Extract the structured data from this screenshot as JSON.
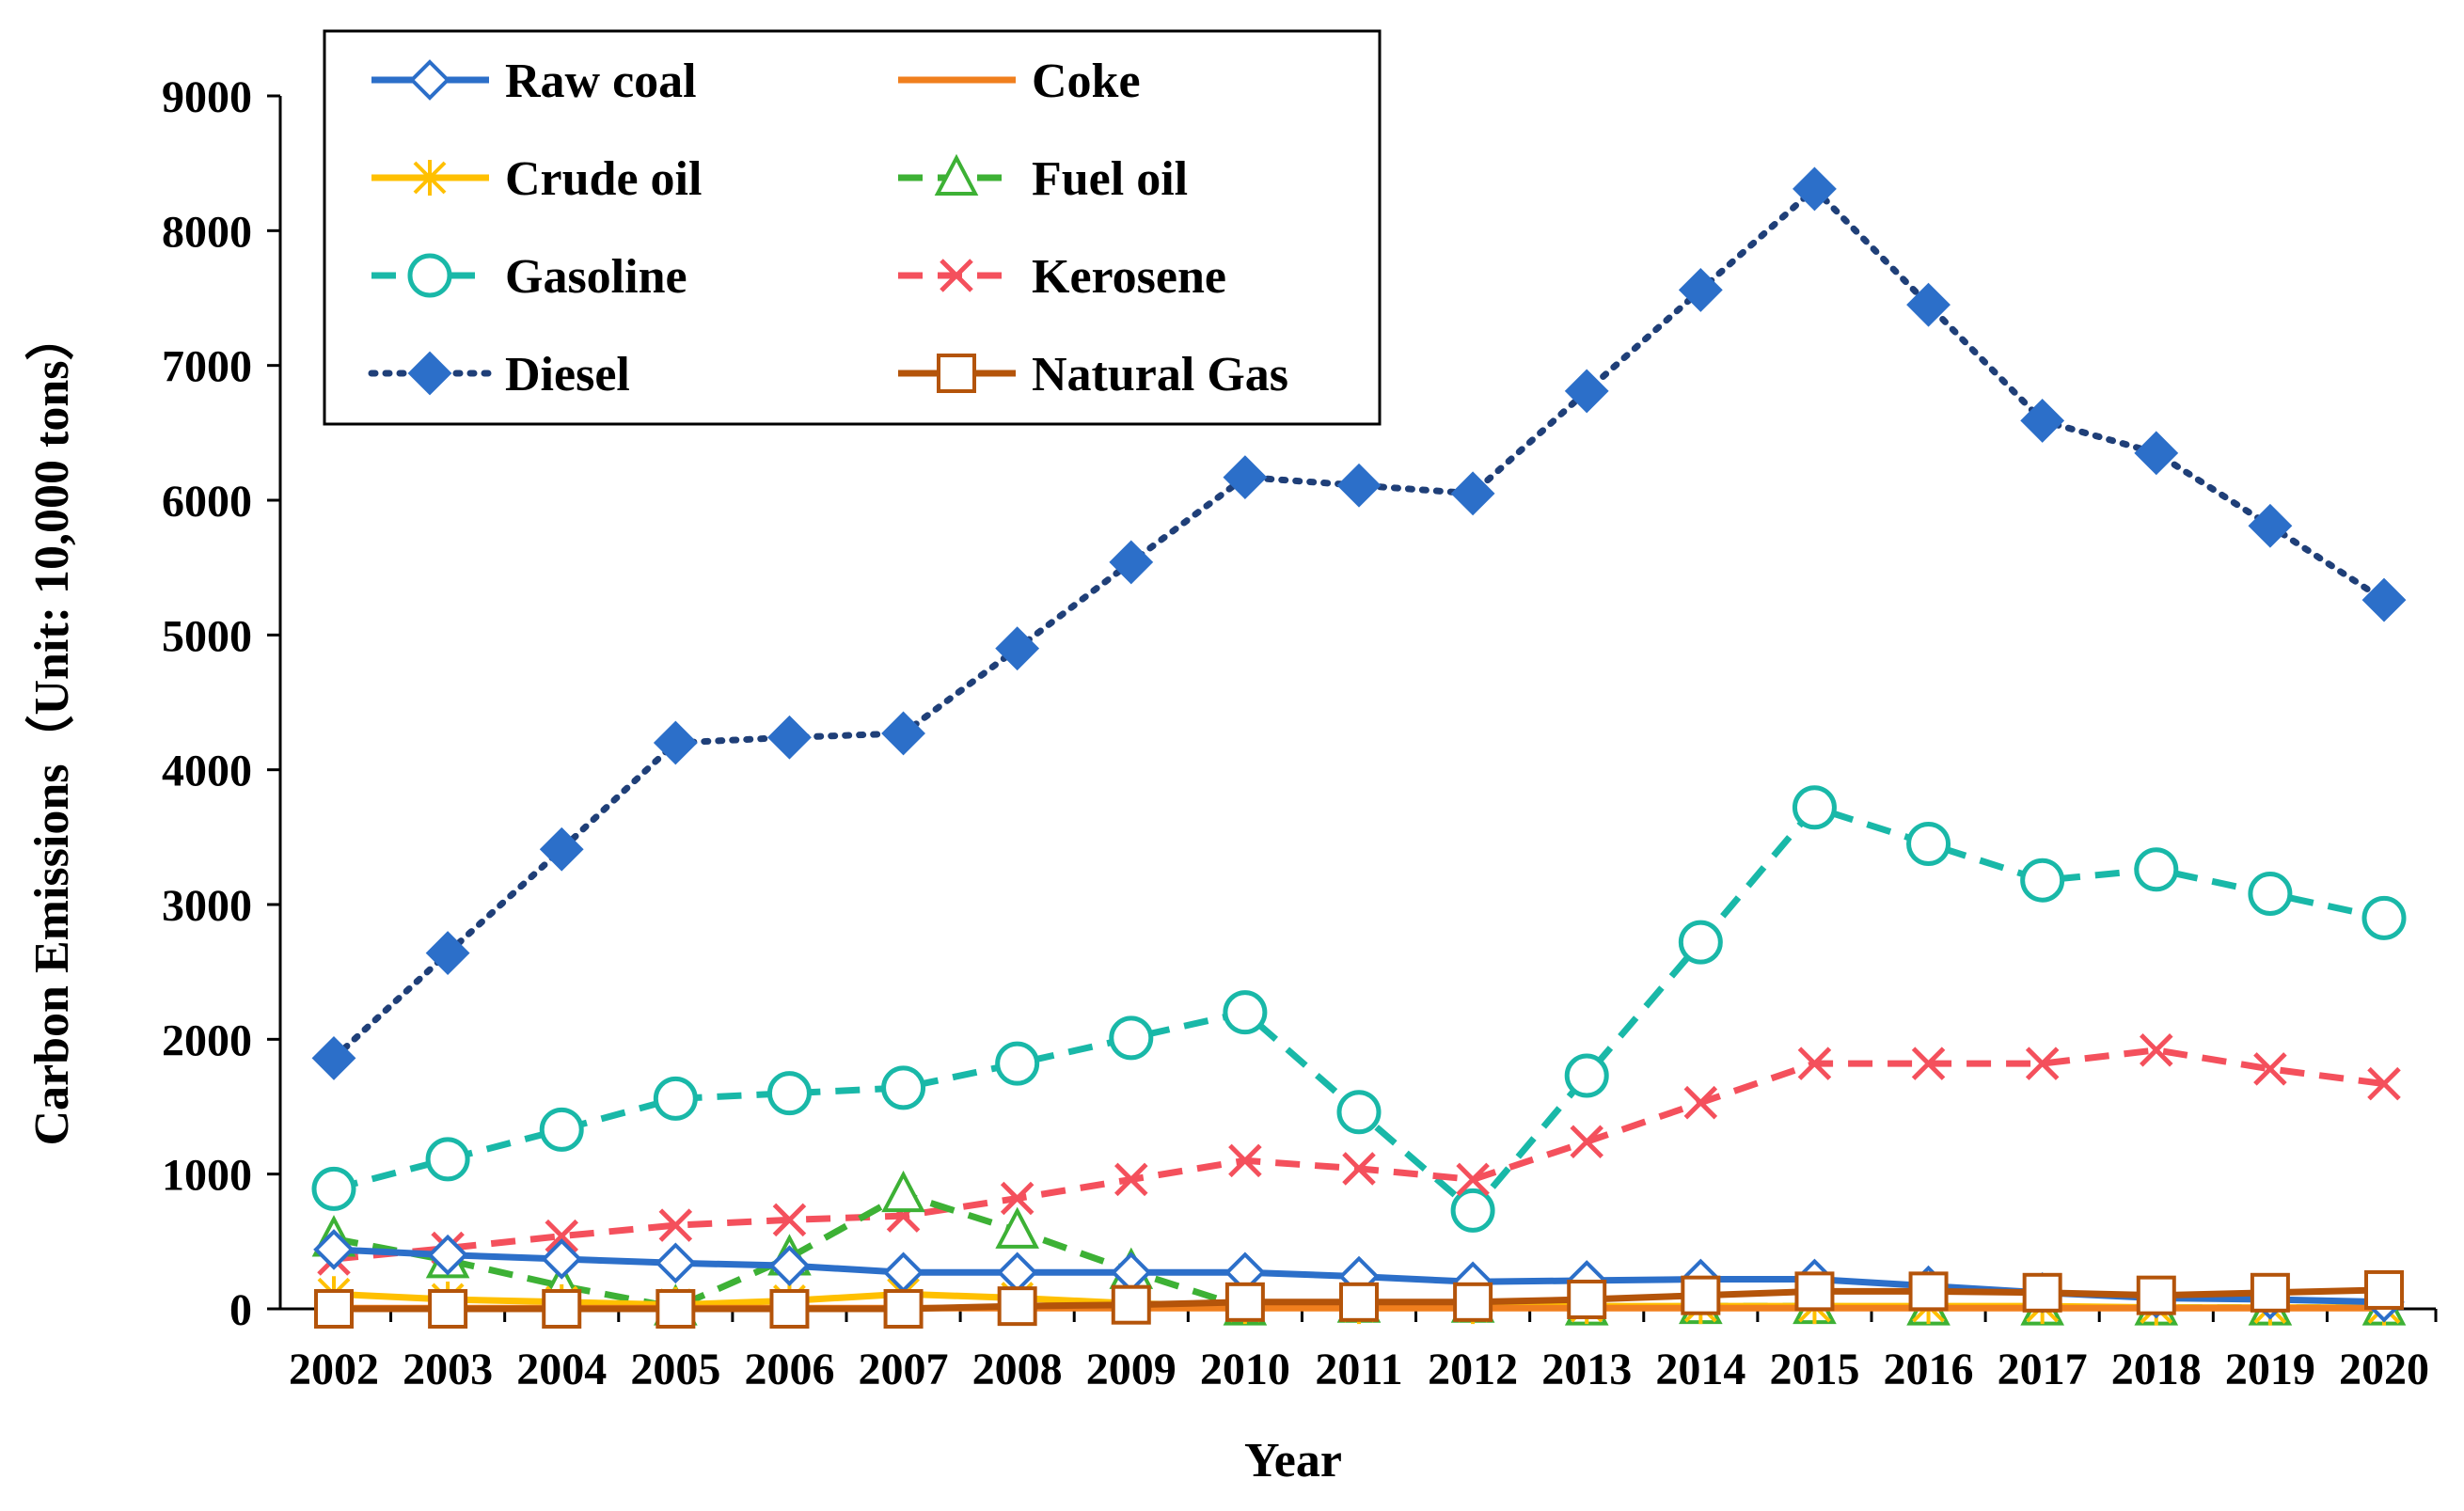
{
  "chart_data": {
    "type": "line",
    "title": "",
    "xlabel": "Year",
    "ylabel": "Carbon Emissions（Unit: 10,000 tons）",
    "ylim": [
      0,
      9000
    ],
    "yticks": [
      "0",
      "1000",
      "2000",
      "3000",
      "4000",
      "5000",
      "6000",
      "7000",
      "8000",
      "9000"
    ],
    "categories": [
      "2002",
      "2003",
      "2004",
      "2005",
      "2006",
      "2007",
      "2008",
      "2009",
      "2010",
      "2011",
      "2012",
      "2013",
      "2014",
      "2015",
      "2016",
      "2017",
      "2018",
      "2019",
      "2020"
    ],
    "legend_position": "top-left",
    "series": [
      {
        "name": "Raw coal",
        "color": "#2c6fc9",
        "dash": "solid",
        "marker": "diamond-open",
        "values": [
          440,
          400,
          370,
          340,
          320,
          270,
          270,
          270,
          270,
          240,
          200,
          210,
          220,
          220,
          170,
          120,
          80,
          70,
          50
        ]
      },
      {
        "name": "Coke",
        "color": "#f07f1e",
        "dash": "solid",
        "marker": "none",
        "values": [
          5,
          5,
          5,
          5,
          5,
          5,
          5,
          5,
          5,
          5,
          5,
          5,
          5,
          5,
          5,
          5,
          5,
          5,
          5
        ]
      },
      {
        "name": "Crude oil",
        "color": "#ffc000",
        "dash": "solid",
        "marker": "asterisk",
        "values": [
          110,
          70,
          50,
          30,
          60,
          110,
          80,
          40,
          20,
          20,
          20,
          20,
          20,
          20,
          20,
          20,
          10,
          10,
          10
        ]
      },
      {
        "name": "Fuel oil",
        "color": "#3db135",
        "dash": "dash",
        "marker": "triangle-open",
        "values": [
          520,
          360,
          170,
          10,
          380,
          850,
          580,
          280,
          10,
          30,
          30,
          10,
          20,
          20,
          10,
          10,
          10,
          10,
          10
        ]
      },
      {
        "name": "Gasoline",
        "color": "#19b8a8",
        "dash": "dash",
        "marker": "circle-open",
        "values": [
          890,
          1110,
          1330,
          1560,
          1600,
          1640,
          1820,
          2010,
          2200,
          1460,
          730,
          1730,
          2720,
          3720,
          3450,
          3180,
          3260,
          3080,
          2900
        ]
      },
      {
        "name": "Kerosene",
        "color": "#f4505c",
        "dash": "dash",
        "marker": "x",
        "values": [
          370,
          450,
          540,
          620,
          660,
          690,
          820,
          960,
          1100,
          1040,
          960,
          1240,
          1530,
          1820,
          1820,
          1820,
          1920,
          1780,
          1670
        ]
      },
      {
        "name": "Diesel",
        "color": "#1f3f78",
        "markerColor": "#2c6fc9",
        "dash": "dot",
        "marker": "diamond-filled",
        "values": [
          1860,
          2640,
          3410,
          4200,
          4240,
          4270,
          4900,
          5540,
          6170,
          6110,
          6050,
          6810,
          7560,
          8310,
          7450,
          6590,
          6350,
          5810,
          5260
        ]
      },
      {
        "name": "Natural Gas",
        "color": "#b4540a",
        "dash": "solid",
        "marker": "square-open",
        "values": [
          0,
          0,
          0,
          0,
          0,
          0,
          20,
          30,
          50,
          50,
          50,
          70,
          100,
          130,
          130,
          120,
          100,
          120,
          140
        ]
      }
    ]
  }
}
